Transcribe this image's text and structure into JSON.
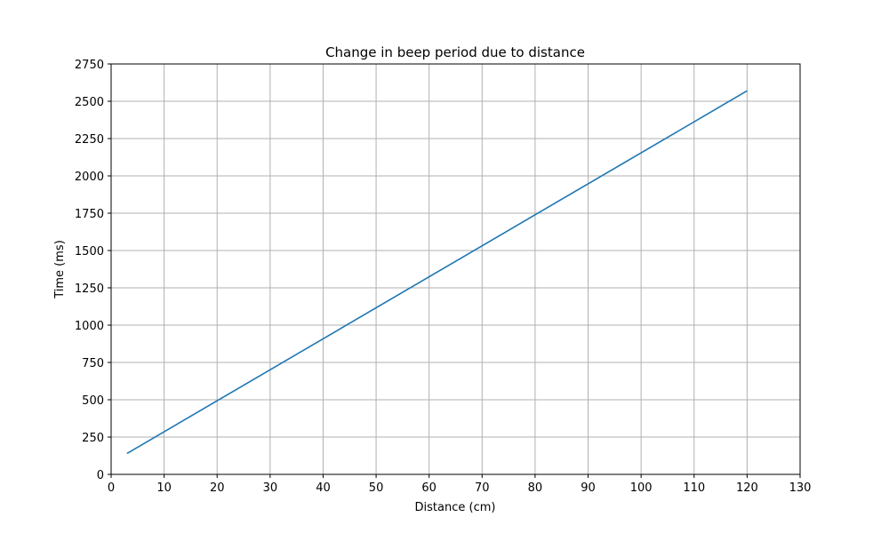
{
  "chart_data": {
    "type": "line",
    "title": "Change in beep period due to distance",
    "xlabel": "Distance (cm)",
    "ylabel": "Time (ms)",
    "xlim": [
      0,
      130
    ],
    "ylim": [
      0,
      2750
    ],
    "xticks": [
      0,
      10,
      20,
      30,
      40,
      50,
      60,
      70,
      80,
      90,
      100,
      110,
      120,
      130
    ],
    "yticks": [
      0,
      250,
      500,
      750,
      1000,
      1250,
      1500,
      1750,
      2000,
      2250,
      2500,
      2750
    ],
    "grid": true,
    "series": [
      {
        "color": "#1f77b4",
        "x": [
          3,
          120
        ],
        "y": [
          140,
          2570
        ]
      }
    ]
  }
}
